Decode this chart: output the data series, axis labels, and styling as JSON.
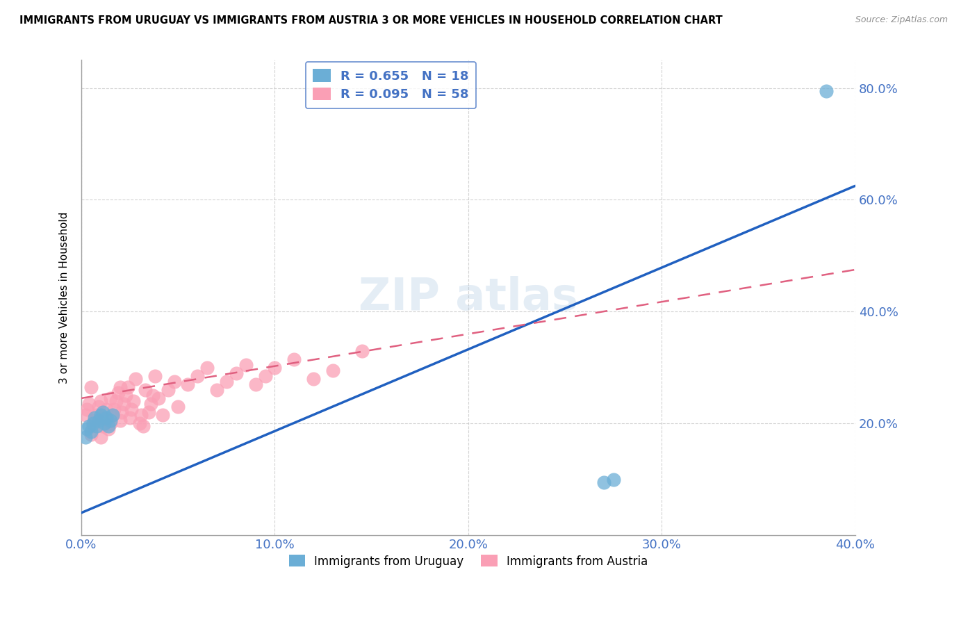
{
  "title": "IMMIGRANTS FROM URUGUAY VS IMMIGRANTS FROM AUSTRIA 3 OR MORE VEHICLES IN HOUSEHOLD CORRELATION CHART",
  "source": "Source: ZipAtlas.com",
  "ylabel": "3 or more Vehicles in Household",
  "xlabel": "",
  "xlim": [
    0.0,
    0.4
  ],
  "ylim": [
    0.0,
    0.85
  ],
  "yticks": [
    0.2,
    0.4,
    0.6,
    0.8
  ],
  "ytick_labels": [
    "20.0%",
    "40.0%",
    "60.0%",
    "80.0%"
  ],
  "xticks": [
    0.0,
    0.1,
    0.2,
    0.3,
    0.4
  ],
  "xtick_labels": [
    "0.0%",
    "10.0%",
    "20.0%",
    "30.0%",
    "40.0%"
  ],
  "uruguay_color": "#6baed6",
  "austria_color": "#fa9fb5",
  "uruguay_R": 0.655,
  "uruguay_N": 18,
  "austria_R": 0.095,
  "austria_N": 58,
  "uruguay_x": [
    0.002,
    0.003,
    0.004,
    0.005,
    0.006,
    0.007,
    0.008,
    0.009,
    0.01,
    0.011,
    0.012,
    0.013,
    0.014,
    0.015,
    0.016,
    0.27,
    0.275,
    0.385
  ],
  "uruguay_y": [
    0.175,
    0.19,
    0.195,
    0.185,
    0.2,
    0.21,
    0.195,
    0.205,
    0.215,
    0.22,
    0.2,
    0.21,
    0.195,
    0.205,
    0.215,
    0.095,
    0.1,
    0.795
  ],
  "austria_x": [
    0.002,
    0.003,
    0.004,
    0.005,
    0.005,
    0.006,
    0.007,
    0.008,
    0.009,
    0.01,
    0.01,
    0.011,
    0.012,
    0.013,
    0.014,
    0.015,
    0.015,
    0.016,
    0.017,
    0.018,
    0.019,
    0.02,
    0.02,
    0.021,
    0.022,
    0.023,
    0.024,
    0.025,
    0.026,
    0.027,
    0.028,
    0.03,
    0.031,
    0.032,
    0.033,
    0.035,
    0.036,
    0.037,
    0.038,
    0.04,
    0.042,
    0.045,
    0.048,
    0.05,
    0.055,
    0.06,
    0.065,
    0.07,
    0.075,
    0.08,
    0.085,
    0.09,
    0.095,
    0.1,
    0.11,
    0.12,
    0.13,
    0.145
  ],
  "austria_y": [
    0.215,
    0.225,
    0.235,
    0.18,
    0.265,
    0.195,
    0.205,
    0.215,
    0.23,
    0.175,
    0.24,
    0.195,
    0.21,
    0.225,
    0.19,
    0.2,
    0.245,
    0.215,
    0.225,
    0.24,
    0.255,
    0.205,
    0.265,
    0.22,
    0.235,
    0.25,
    0.265,
    0.21,
    0.225,
    0.24,
    0.28,
    0.2,
    0.215,
    0.195,
    0.26,
    0.22,
    0.235,
    0.25,
    0.285,
    0.245,
    0.215,
    0.26,
    0.275,
    0.23,
    0.27,
    0.285,
    0.3,
    0.26,
    0.275,
    0.29,
    0.305,
    0.27,
    0.285,
    0.3,
    0.315,
    0.28,
    0.295,
    0.33
  ],
  "blue_line_x0": 0.0,
  "blue_line_y0": 0.04,
  "blue_line_x1": 0.4,
  "blue_line_y1": 0.625,
  "pink_line_x0": 0.0,
  "pink_line_y0": 0.245,
  "pink_line_x1": 0.4,
  "pink_line_y1": 0.475,
  "title_fontsize": 10.5,
  "axis_label_color": "#4472c4",
  "tick_label_color": "#4472c4",
  "grid_color": "#c8c8c8",
  "legend_R_color": "#4472c4",
  "legend_frame_color": "#4472c4"
}
